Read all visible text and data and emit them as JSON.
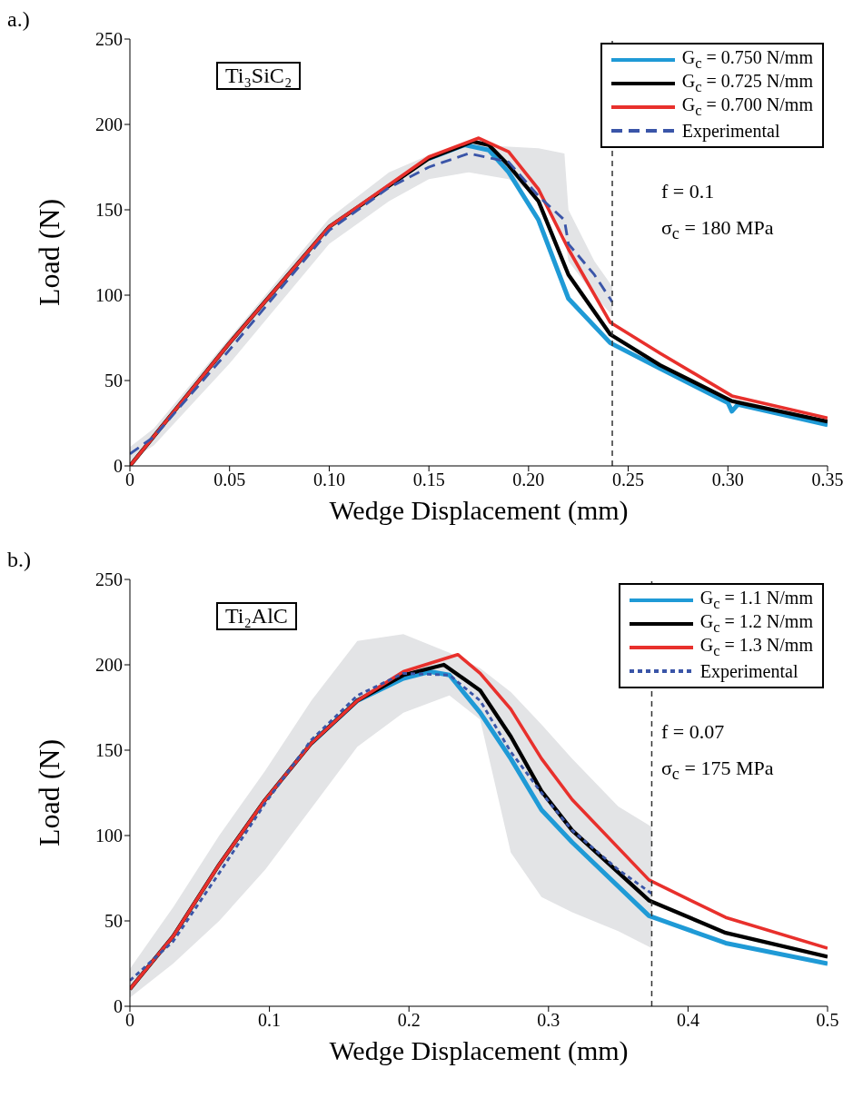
{
  "chart_data": [
    {
      "type": "line",
      "xlabel": "Wedge Displacement (mm)",
      "ylabel": "Load (N)",
      "xlim": [
        0,
        0.35
      ],
      "ylim": [
        0,
        250
      ],
      "xticks": [
        0,
        0.05,
        {
          "value": 0.1,
          "label": "0.10"
        },
        0.15,
        {
          "value": 0.2,
          "label": "0.20"
        },
        0.25,
        {
          "value": 0.3,
          "label": "0.30"
        },
        0.35
      ],
      "yticks": [
        0,
        50,
        100,
        150,
        200,
        250
      ],
      "legend": "top right",
      "annotations": [
        "a.)",
        "Ti₃SiC₂",
        "f = 0.1",
        "σ$_{c}$ = 180 MPa"
      ],
      "ref_lines": [
        {
          "axis": "x",
          "value": 0.242,
          "line_style": "dashed"
        }
      ],
      "series": [
        {
          "name": "G$_{c}$ = 0.750 N/mm",
          "color": "#1f9ad6",
          "line_style": "solid",
          "x": [
            0.15,
            0.168,
            0.18,
            0.19,
            0.205,
            0.22,
            0.241,
            0.266,
            0.3,
            0.302,
            0.305,
            0.35
          ],
          "values": [
            180,
            188,
            185,
            172,
            144,
            98,
            72,
            57,
            37,
            32,
            36,
            24
          ]
        },
        {
          "name": "G$_{c}$ = 0.725 N/mm",
          "color": "#000000",
          "line_style": "solid",
          "x": [
            0,
            0.05,
            0.1,
            0.15,
            0.172,
            0.18,
            0.19,
            0.205,
            0.22,
            0.241,
            0.266,
            0.302,
            0.35
          ],
          "values": [
            0,
            72,
            140,
            180,
            190,
            188,
            176,
            155,
            112,
            77,
            59,
            38,
            26
          ]
        },
        {
          "name": "G$_{c}$ = 0.700 N/mm",
          "color": "#e8302c",
          "line_style": "solid",
          "x": [
            0,
            0.05,
            0.1,
            0.15,
            0.175,
            0.19,
            0.205,
            0.22,
            0.241,
            0.266,
            0.302,
            0.35
          ],
          "values": [
            0,
            72,
            140,
            181,
            192,
            184,
            162,
            127,
            84,
            66,
            41,
            28
          ]
        },
        {
          "name": "Experimental",
          "color": "#3a55a8",
          "line_style": "dashed",
          "x": [
            0,
            0.012,
            0.05,
            0.1,
            0.13,
            0.15,
            0.17,
            0.19,
            0.205,
            0.218,
            0.22,
            0.233,
            0.242
          ],
          "values": [
            7,
            17,
            68,
            138,
            163,
            175,
            183,
            178,
            158,
            144,
            130,
            112,
            96
          ],
          "lower": [
            3,
            12,
            60,
            130,
            155,
            168,
            172,
            168,
            158,
            135,
            120,
            100,
            88
          ],
          "upper": [
            11,
            22,
            75,
            145,
            172,
            182,
            188,
            187,
            186,
            183,
            150,
            120,
            105
          ]
        }
      ]
    },
    {
      "type": "line",
      "xlabel": "Wedge Displacement (mm)",
      "ylabel": "Load (N)",
      "xlim": [
        0,
        0.5
      ],
      "ylim": [
        0,
        250
      ],
      "xticks": [
        0,
        0.1,
        0.2,
        0.3,
        0.4,
        0.5
      ],
      "yticks": [
        0,
        50,
        100,
        150,
        200,
        250
      ],
      "legend": "top right",
      "annotations": [
        "b.)",
        "Ti₂AlC",
        "f = 0.07",
        "σ$_{c}$ = 175 MPa"
      ],
      "ref_lines": [
        {
          "axis": "x",
          "value": 0.374,
          "line_style": "dashed"
        }
      ],
      "series": [
        {
          "name": "G$_{c}$ = 1.1 N/mm",
          "color": "#1f9ad6",
          "line_style": "solid",
          "x": [
            0.13,
            0.163,
            0.196,
            0.215,
            0.229,
            0.251,
            0.273,
            0.295,
            0.317,
            0.372,
            0.427,
            0.5
          ],
          "values": [
            154,
            179,
            192,
            196,
            194,
            172,
            145,
            115,
            96,
            53,
            37,
            25
          ]
        },
        {
          "name": "G$_{c}$ = 1.2 N/mm",
          "color": "#000000",
          "line_style": "solid",
          "x": [
            0,
            0.031,
            0.064,
            0.097,
            0.13,
            0.163,
            0.196,
            0.225,
            0.251,
            0.273,
            0.295,
            0.317,
            0.372,
            0.427,
            0.5
          ],
          "values": [
            10,
            41,
            83,
            121,
            154,
            179,
            194,
            200,
            185,
            158,
            126,
            103,
            62,
            43,
            29
          ]
        },
        {
          "name": "G$_{c}$ = 1.3 N/mm",
          "color": "#e8302c",
          "line_style": "solid",
          "x": [
            0,
            0.031,
            0.064,
            0.097,
            0.13,
            0.163,
            0.196,
            0.235,
            0.251,
            0.273,
            0.295,
            0.317,
            0.372,
            0.427,
            0.5
          ],
          "values": [
            10,
            41,
            83,
            121,
            154,
            179,
            196,
            206,
            195,
            174,
            145,
            121,
            74,
            52,
            34
          ]
        },
        {
          "name": "Experimental",
          "color": "#3a55a8",
          "line_style": "dotted",
          "x": [
            0,
            0.031,
            0.064,
            0.097,
            0.13,
            0.163,
            0.196,
            0.229,
            0.251,
            0.273,
            0.295,
            0.317,
            0.35,
            0.374
          ],
          "values": [
            15,
            38,
            78,
            119,
            156,
            182,
            195,
            194,
            179,
            149,
            125,
            103,
            80,
            66
          ],
          "lower": [
            5,
            25,
            50,
            80,
            116,
            152,
            172,
            182,
            168,
            90,
            64,
            55,
            44,
            34
          ],
          "upper": [
            22,
            58,
            100,
            138,
            179,
            214,
            218,
            207,
            198,
            184,
            165,
            145,
            117,
            105
          ]
        }
      ]
    }
  ]
}
